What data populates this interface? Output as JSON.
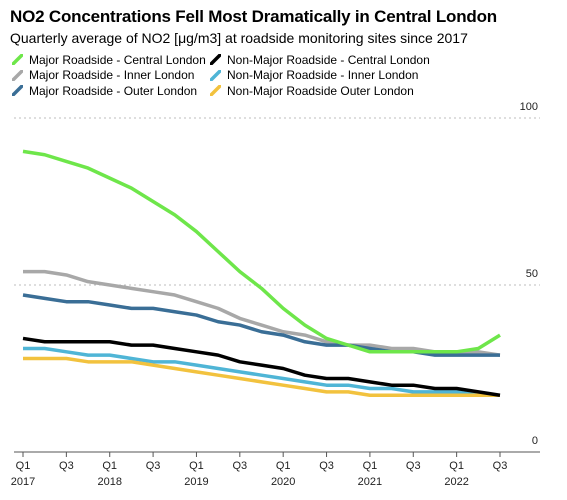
{
  "title": "NO2 Concentrations Fell Most Dramatically in Central London",
  "subtitle": "Quarterly average of NO2 [μg/m3] at roadside monitoring sites since 2017",
  "legend": [
    {
      "label": "Major Roadside - Central London",
      "color": "#6ee64a"
    },
    {
      "label": "Non-Major Roadside - Central London",
      "color": "#000000"
    },
    {
      "label": "Major Roadside - Inner London",
      "color": "#a8a8a8"
    },
    {
      "label": "Non-Major Roadside - Inner London",
      "color": "#4fb5d6"
    },
    {
      "label": "Major Roadside - Outer London",
      "color": "#3a6e96"
    },
    {
      "label": "Non-Major Roadside Outer London",
      "color": "#f2c23e"
    }
  ],
  "chart_data": {
    "type": "line",
    "x": [
      "2017 Q1",
      "2017 Q2",
      "2017 Q3",
      "2017 Q4",
      "2018 Q1",
      "2018 Q2",
      "2018 Q3",
      "2018 Q4",
      "2019 Q1",
      "2019 Q2",
      "2019 Q3",
      "2019 Q4",
      "2020 Q1",
      "2020 Q2",
      "2020 Q3",
      "2020 Q4",
      "2021 Q1",
      "2021 Q2",
      "2021 Q3",
      "2021 Q4",
      "2022 Q1",
      "2022 Q2",
      "2022 Q3"
    ],
    "x_tick_labels": [
      {
        "quarter": "Q1",
        "year": "2017"
      },
      {
        "quarter": "Q3",
        "year": ""
      },
      {
        "quarter": "Q1",
        "year": "2018"
      },
      {
        "quarter": "Q3",
        "year": ""
      },
      {
        "quarter": "Q1",
        "year": "2019"
      },
      {
        "quarter": "Q3",
        "year": ""
      },
      {
        "quarter": "Q1",
        "year": "2020"
      },
      {
        "quarter": "Q3",
        "year": ""
      },
      {
        "quarter": "Q1",
        "year": "2021"
      },
      {
        "quarter": "Q3",
        "year": ""
      },
      {
        "quarter": "Q1",
        "year": "2022"
      },
      {
        "quarter": "Q3",
        "year": ""
      }
    ],
    "y_ticks": [
      0,
      50,
      100
    ],
    "ylim": [
      0,
      100
    ],
    "grid": "horizontal dotted",
    "series": [
      {
        "name": "Major Roadside - Inner London",
        "color": "#a8a8a8",
        "values": [
          54,
          54,
          53,
          51,
          50,
          49,
          48,
          47,
          45,
          43,
          40,
          38,
          36,
          35,
          33,
          32,
          32,
          31,
          31,
          30,
          30,
          30,
          29
        ]
      },
      {
        "name": "Major Roadside - Outer London",
        "color": "#3a6e96",
        "values": [
          47,
          46,
          45,
          45,
          44,
          43,
          43,
          42,
          41,
          39,
          38,
          36,
          35,
          33,
          32,
          32,
          31,
          30,
          30,
          29,
          29,
          29,
          29
        ]
      },
      {
        "name": "Non-Major Roadside - Inner London",
        "color": "#4fb5d6",
        "values": [
          31,
          31,
          30,
          29,
          29,
          28,
          27,
          27,
          26,
          25,
          24,
          23,
          22,
          21,
          20,
          20,
          19,
          19,
          18,
          18,
          18,
          17,
          17
        ]
      },
      {
        "name": "Non-Major Roadside Outer London",
        "color": "#f2c23e",
        "values": [
          28,
          28,
          28,
          27,
          27,
          27,
          26,
          25,
          24,
          23,
          22,
          21,
          20,
          19,
          18,
          18,
          17,
          17,
          17,
          17,
          17,
          17,
          17
        ]
      },
      {
        "name": "Non-Major Roadside - Central London",
        "color": "#000000",
        "values": [
          34,
          33,
          33,
          33,
          33,
          32,
          32,
          31,
          30,
          29,
          27,
          26,
          25,
          23,
          22,
          22,
          21,
          20,
          20,
          19,
          19,
          18,
          17
        ]
      },
      {
        "name": "Major Roadside - Central London",
        "color": "#6ee64a",
        "values": [
          90,
          89,
          87,
          85,
          82,
          79,
          75,
          71,
          66,
          60,
          54,
          49,
          43,
          38,
          34,
          32,
          30,
          30,
          30,
          30,
          30,
          31,
          35
        ]
      }
    ]
  }
}
